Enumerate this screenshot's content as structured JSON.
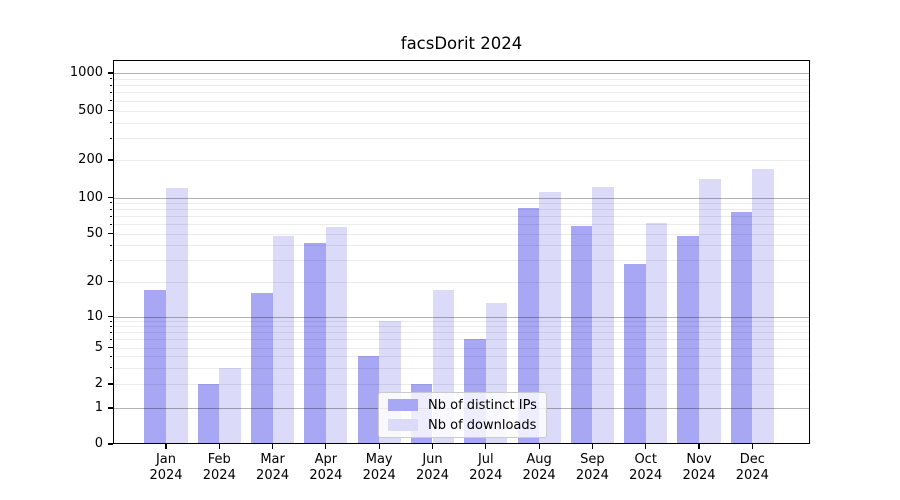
{
  "title": "facsDorit 2024",
  "chart_data": {
    "type": "bar",
    "title": "facsDorit 2024",
    "categories": [
      "Jan",
      "Feb",
      "Mar",
      "Apr",
      "May",
      "Jun",
      "Jul",
      "Aug",
      "Sep",
      "Oct",
      "Nov",
      "Dec"
    ],
    "category_year": "2024",
    "series": [
      {
        "name": "Nb of distinct IPs",
        "key": "ips",
        "color": "#a7a7f4",
        "values": [
          17,
          2,
          16,
          42,
          4,
          2,
          6,
          82,
          58,
          28,
          48,
          76
        ]
      },
      {
        "name": "Nb of downloads",
        "key": "downloads",
        "color": "#dbdbf9",
        "values": [
          120,
          3,
          48,
          57,
          9,
          17,
          13,
          110,
          122,
          61,
          140,
          170
        ]
      }
    ],
    "xlabel": "",
    "ylabel": "",
    "yscale": "symlog",
    "ylim": [
      0,
      1300
    ],
    "yticks": [
      0,
      1,
      2,
      5,
      10,
      20,
      50,
      100,
      200,
      500,
      1000
    ],
    "major_grid_values": [
      1,
      10,
      100,
      1000
    ],
    "minor_grid_values": [
      3,
      4,
      6,
      7,
      8,
      9,
      30,
      40,
      60,
      70,
      80,
      90,
      300,
      400,
      600,
      700,
      800,
      900
    ],
    "grid": true,
    "legend_position": "lower center"
  },
  "colors": {
    "bar_ips": "#a7a7f4",
    "bar_downloads": "#dbdbf9",
    "grid_major": "#b0b0b0",
    "grid_minor": "#ececec",
    "spine": "#000000",
    "background": "#ffffff"
  }
}
